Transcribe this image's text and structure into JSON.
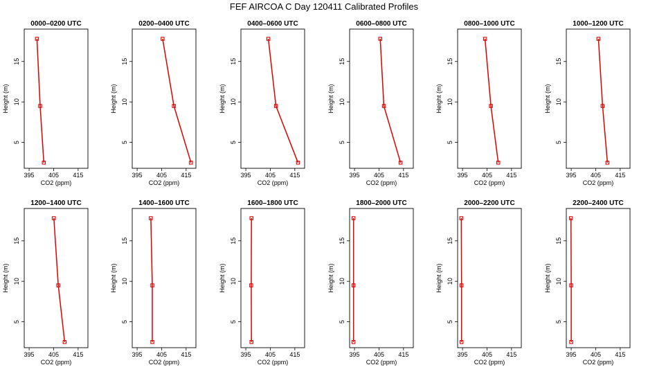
{
  "chart_data": {
    "type": "line",
    "title": "FEF AIRCOA C  Day 120411  Calibrated Profiles",
    "xlabel": "CO2 (ppm)",
    "ylabel": "Height (m)",
    "xlim": [
      393,
      419
    ],
    "ylim": [
      1.8,
      19.0
    ],
    "xticks": [
      395,
      405,
      415
    ],
    "yticks": [
      5,
      10,
      15
    ],
    "heights": [
      2.5,
      9.5,
      17.8
    ],
    "line_color": "#dd0000",
    "panels": [
      {
        "title": "0000–0200 UTC",
        "co2": [
          401.0,
          399.5,
          398.2
        ]
      },
      {
        "title": "0200–0400 UTC",
        "co2": [
          417.0,
          410.0,
          405.4
        ]
      },
      {
        "title": "0400–0600 UTC",
        "co2": [
          416.3,
          407.3,
          404.2
        ]
      },
      {
        "title": "0600–0800 UTC",
        "co2": [
          413.8,
          407.0,
          405.5
        ]
      },
      {
        "title": "0800–1000 UTC",
        "co2": [
          409.6,
          406.6,
          404.2
        ]
      },
      {
        "title": "1000–1200 UTC",
        "co2": [
          409.8,
          407.8,
          406.1
        ]
      },
      {
        "title": "1200–1400 UTC",
        "co2": [
          409.5,
          406.9,
          405.1
        ]
      },
      {
        "title": "1400–1600 UTC",
        "co2": [
          401.2,
          401.2,
          400.6
        ]
      },
      {
        "title": "1600–1800 UTC",
        "co2": [
          397.3,
          397.2,
          397.3
        ]
      },
      {
        "title": "1800–2000 UTC",
        "co2": [
          394.6,
          394.6,
          394.6
        ]
      },
      {
        "title": "2000–2200 UTC",
        "co2": [
          394.6,
          394.6,
          394.5
        ]
      },
      {
        "title": "2200–2400 UTC",
        "co2": [
          395.0,
          395.0,
          394.9
        ]
      }
    ]
  }
}
